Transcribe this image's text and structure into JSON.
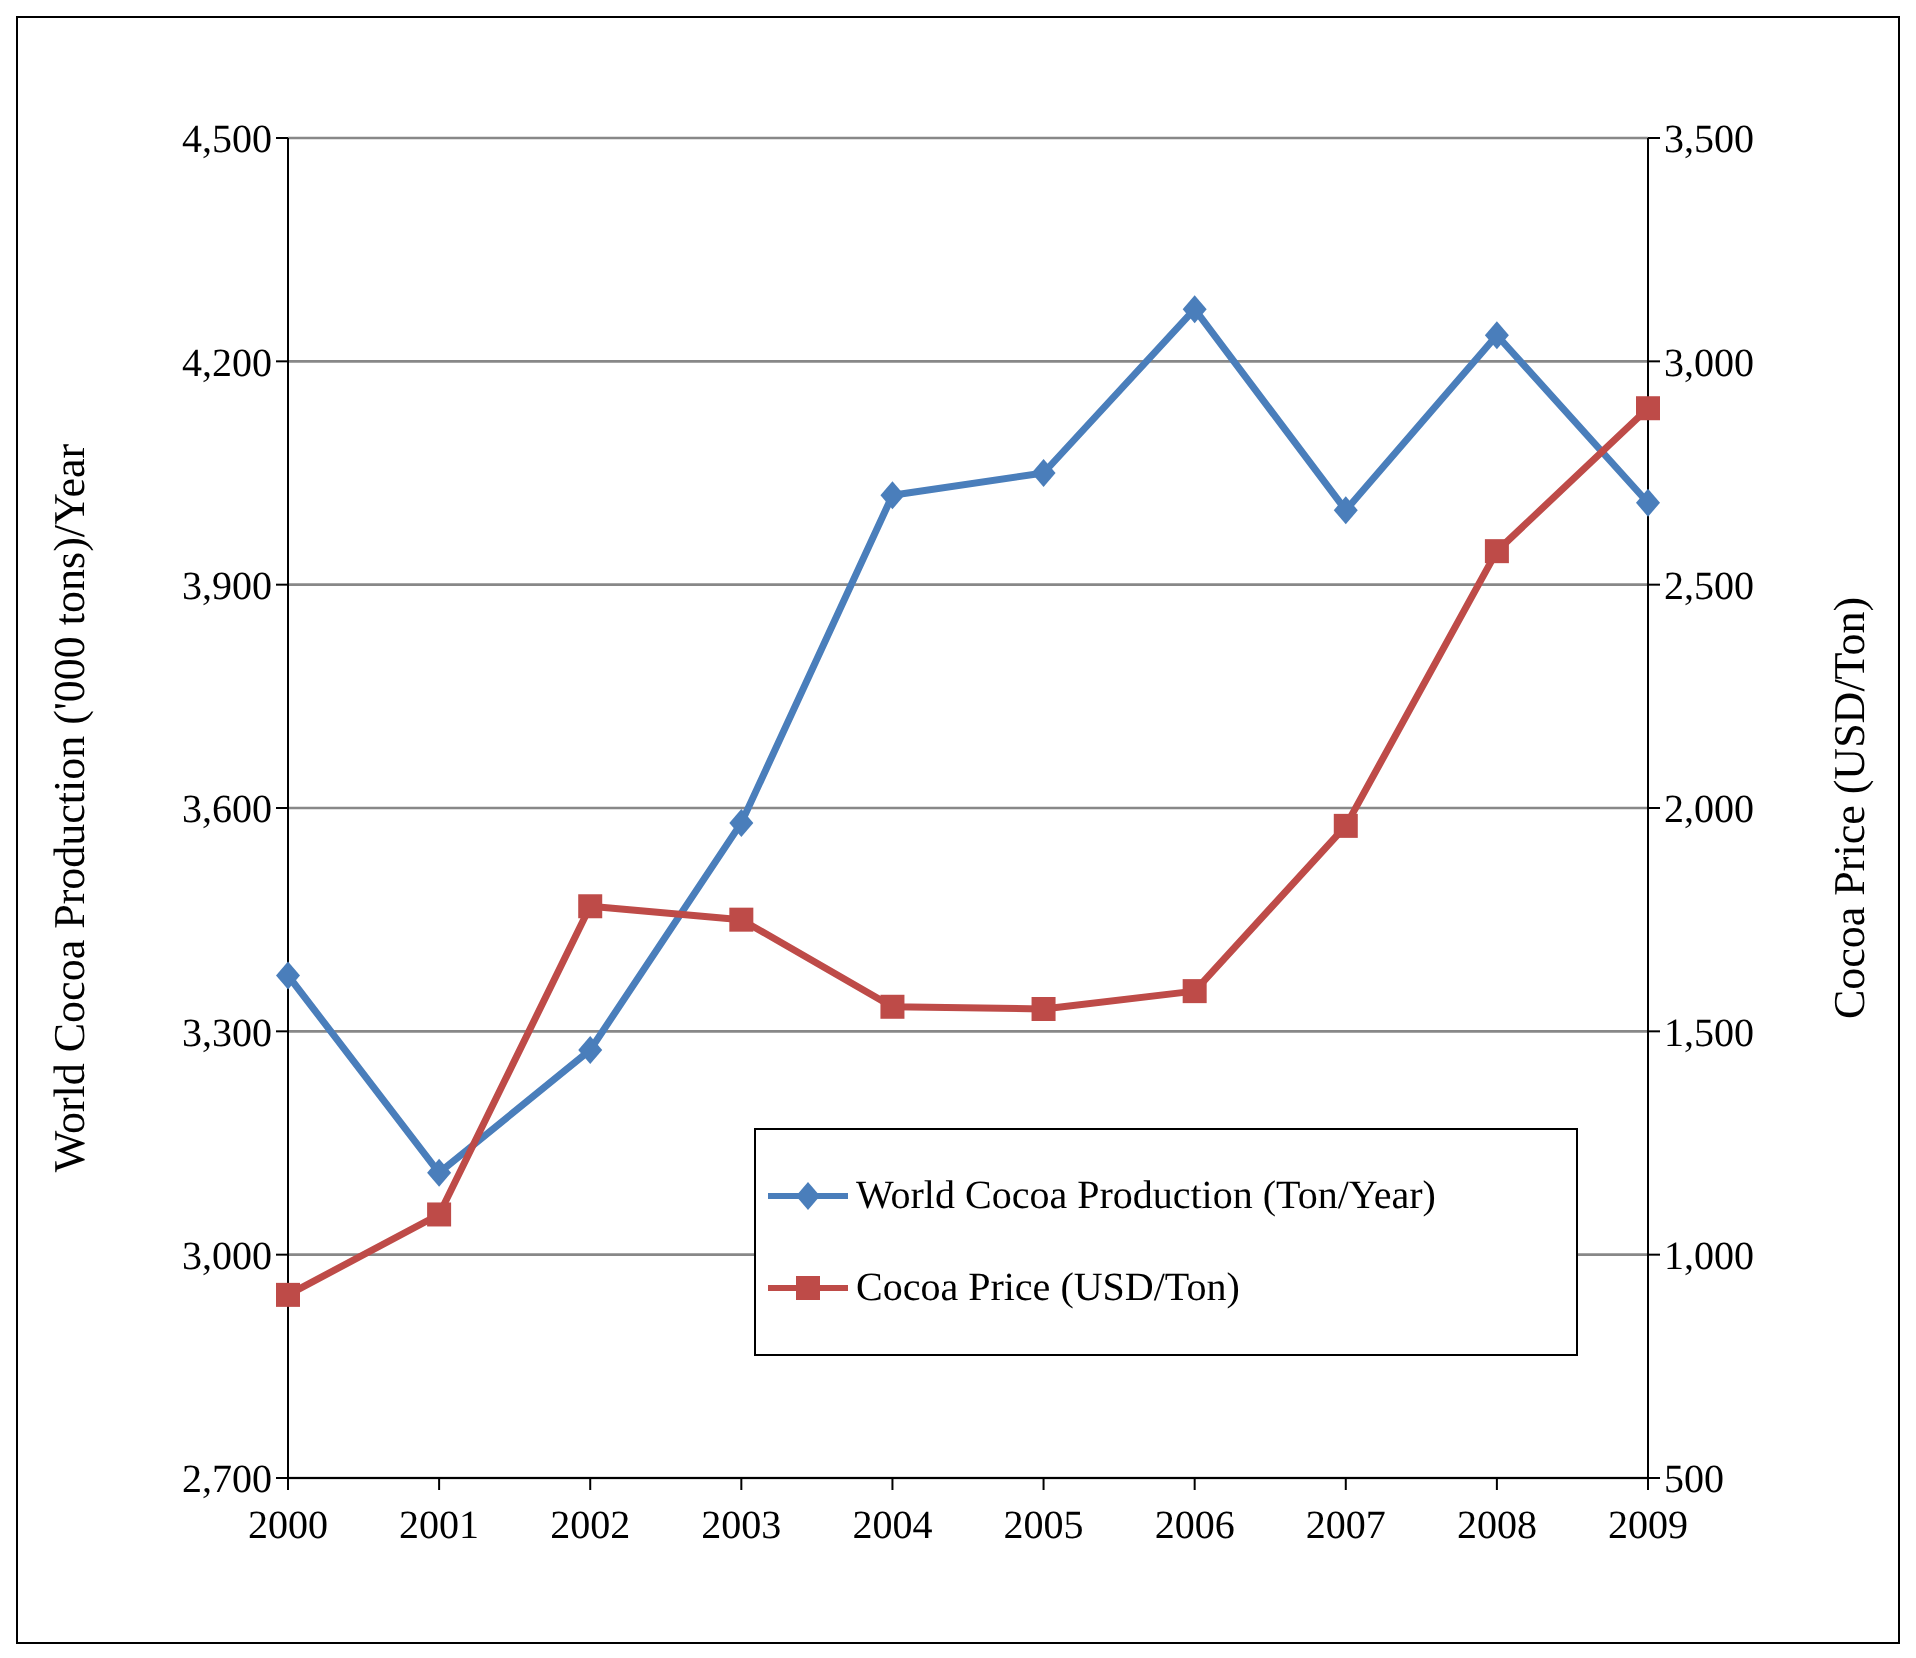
{
  "chart_data": {
    "type": "line",
    "categories": [
      "2000",
      "2001",
      "2002",
      "2003",
      "2004",
      "2005",
      "2006",
      "2007",
      "2008",
      "2009"
    ],
    "ylabel": "World Cocoa Production ('000  tons)/Year",
    "y2label": "Cocoa Price (USD/Ton)",
    "ylim": [
      2700,
      4500
    ],
    "yticks": [
      {
        "value": 2700,
        "label": "2,700"
      },
      {
        "value": 3000,
        "label": "3,000"
      },
      {
        "value": 3300,
        "label": "3,300"
      },
      {
        "value": 3600,
        "label": "3,600"
      },
      {
        "value": 3900,
        "label": "3,900"
      },
      {
        "value": 4200,
        "label": "4,200"
      },
      {
        "value": 4500,
        "label": "4,500"
      }
    ],
    "y2lim": [
      500,
      3500
    ],
    "y2ticks": [
      500,
      {
        "value": 1000,
        "label": "1,000"
      },
      {
        "value": 1500,
        "label": "1,500"
      },
      {
        "value": 2000,
        "label": "2,000"
      },
      {
        "value": 2500,
        "label": "2,500"
      },
      {
        "value": 3000,
        "label": "3,000"
      },
      {
        "value": 3500,
        "label": "3,500"
      }
    ],
    "grid": "y",
    "legend": "bottom right",
    "series": [
      {
        "name": "World Cocoa Production (Ton/Year)",
        "color": "#4a7ebb",
        "marker": "diamond",
        "values": [
          3375,
          3110,
          3275,
          3580,
          4020,
          4050,
          4270,
          4000,
          4235,
          4010
        ]
      },
      {
        "name": "Cocoa Price (USD/Ton)",
        "color": "#be4b48",
        "marker": "square",
        "axis": "y2",
        "values": [
          910,
          1090,
          1780,
          1750,
          1555,
          1550,
          1590,
          1960,
          2575,
          2895
        ]
      }
    ]
  }
}
